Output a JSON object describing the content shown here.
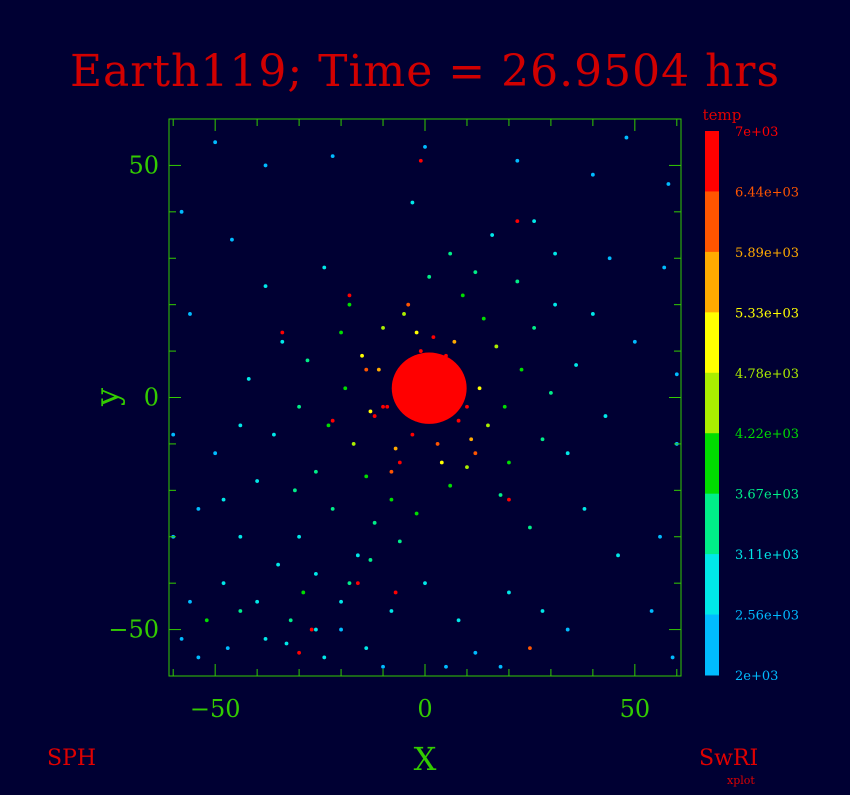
{
  "title": "Earth119; Time = 26.9504 hrs",
  "footer": {
    "left": "SPH",
    "right": "SwRI",
    "right_sub": "xplot"
  },
  "chart_data": {
    "type": "scatter",
    "xlabel": "X",
    "ylabel": "y",
    "xlim": [
      -61,
      61
    ],
    "ylim": [
      -60,
      60
    ],
    "xticks_labeled": [
      -50,
      0,
      50
    ],
    "yticks_labeled": [
      -50,
      0,
      50
    ],
    "x_tick_labels": [
      "−50",
      "0",
      "50"
    ],
    "y_tick_labels": [
      "−50",
      "0",
      "50"
    ],
    "colorbar": {
      "label": "temp",
      "range": [
        2000,
        7000
      ],
      "levels": [
        "7e+03",
        "6.44e+03",
        "5.89e+03",
        "5.33e+03",
        "4.78e+03",
        "4.22e+03",
        "3.67e+03",
        "3.11e+03",
        "2.56e+03",
        "2e+03"
      ],
      "band_colors": [
        "#ff0000",
        "#ff5500",
        "#ffaa00",
        "#ffff00",
        "#aaee00",
        "#00dd00",
        "#00ee88",
        "#00e8e8",
        "#00bbff"
      ]
    },
    "core": {
      "x": 1,
      "y": 2,
      "r": 8.5,
      "temp": 7000
    },
    "particles": [
      {
        "x": -1,
        "y": 10,
        "t": 6900
      },
      {
        "x": 5,
        "y": 9,
        "t": 6800
      },
      {
        "x": -6,
        "y": 6,
        "t": 6600
      },
      {
        "x": 8,
        "y": -5,
        "t": 6500
      },
      {
        "x": -3,
        "y": -8,
        "t": 6700
      },
      {
        "x": 9,
        "y": 4,
        "t": 6400
      },
      {
        "x": -9,
        "y": -2,
        "t": 6600
      },
      {
        "x": 3,
        "y": -10,
        "t": 6200
      },
      {
        "x": -11,
        "y": 6,
        "t": 5700
      },
      {
        "x": 11,
        "y": -9,
        "t": 5600
      },
      {
        "x": -7,
        "y": -11,
        "t": 5500
      },
      {
        "x": 7,
        "y": 12,
        "t": 5800
      },
      {
        "x": -13,
        "y": -3,
        "t": 5200
      },
      {
        "x": 13,
        "y": 2,
        "t": 5300
      },
      {
        "x": -2,
        "y": 14,
        "t": 5100
      },
      {
        "x": 4,
        "y": -14,
        "t": 5000
      },
      {
        "x": -15,
        "y": 9,
        "t": 4800
      },
      {
        "x": 15,
        "y": -6,
        "t": 4700
      },
      {
        "x": -10,
        "y": 15,
        "t": 4600
      },
      {
        "x": 10,
        "y": -15,
        "t": 4500
      },
      {
        "x": -17,
        "y": -10,
        "t": 4400
      },
      {
        "x": 17,
        "y": 11,
        "t": 4300
      },
      {
        "x": -5,
        "y": 18,
        "t": 4400
      },
      {
        "x": 6,
        "y": -19,
        "t": 4200
      },
      {
        "x": -19,
        "y": 2,
        "t": 4200
      },
      {
        "x": 19,
        "y": -2,
        "t": 4100
      },
      {
        "x": -14,
        "y": -17,
        "t": 4000
      },
      {
        "x": 14,
        "y": 17,
        "t": 3900
      },
      {
        "x": -20,
        "y": 14,
        "t": 3900
      },
      {
        "x": 20,
        "y": -14,
        "t": 3800
      },
      {
        "x": -8,
        "y": -22,
        "t": 3900
      },
      {
        "x": 9,
        "y": 22,
        "t": 3800
      },
      {
        "x": -23,
        "y": -6,
        "t": 3700
      },
      {
        "x": 23,
        "y": 6,
        "t": 3800
      },
      {
        "x": -18,
        "y": 20,
        "t": 3700
      },
      {
        "x": 18,
        "y": -21,
        "t": 3600
      },
      {
        "x": -2,
        "y": -25,
        "t": 3700
      },
      {
        "x": 1,
        "y": 26,
        "t": 3600
      },
      {
        "x": -26,
        "y": -16,
        "t": 3500
      },
      {
        "x": 26,
        "y": 15,
        "t": 3500
      },
      {
        "x": -12,
        "y": -27,
        "t": 3500
      },
      {
        "x": 12,
        "y": 27,
        "t": 3400
      },
      {
        "x": -28,
        "y": 8,
        "t": 3400
      },
      {
        "x": 28,
        "y": -9,
        "t": 3400
      },
      {
        "x": -22,
        "y": -24,
        "t": 3400
      },
      {
        "x": 22,
        "y": 25,
        "t": 3300
      },
      {
        "x": -30,
        "y": -2,
        "t": 3300
      },
      {
        "x": 30,
        "y": 1,
        "t": 3300
      },
      {
        "x": -6,
        "y": -31,
        "t": 3400
      },
      {
        "x": 6,
        "y": 31,
        "t": 3200
      },
      {
        "x": -31,
        "y": -20,
        "t": 3200
      },
      {
        "x": 31,
        "y": 20,
        "t": 3100
      },
      {
        "x": -24,
        "y": 28,
        "t": 3100
      },
      {
        "x": 25,
        "y": -28,
        "t": 3200
      },
      {
        "x": -34,
        "y": 12,
        "t": 3000
      },
      {
        "x": 34,
        "y": -12,
        "t": 3000
      },
      {
        "x": -16,
        "y": -34,
        "t": 3100
      },
      {
        "x": 16,
        "y": 35,
        "t": 2900
      },
      {
        "x": -36,
        "y": -8,
        "t": 2900
      },
      {
        "x": 36,
        "y": 7,
        "t": 2900
      },
      {
        "x": -30,
        "y": -30,
        "t": 3000
      },
      {
        "x": 31,
        "y": 31,
        "t": 2800
      },
      {
        "x": -38,
        "y": 24,
        "t": 2800
      },
      {
        "x": 38,
        "y": -24,
        "t": 2800
      },
      {
        "x": -26,
        "y": -38,
        "t": 2900
      },
      {
        "x": 26,
        "y": 38,
        "t": 2700
      },
      {
        "x": -40,
        "y": -18,
        "t": 2800
      },
      {
        "x": 40,
        "y": 18,
        "t": 2700
      },
      {
        "x": -35,
        "y": -36,
        "t": 2800
      },
      {
        "x": 0,
        "y": -40,
        "t": 3000
      },
      {
        "x": -3,
        "y": 42,
        "t": 2700
      },
      {
        "x": -42,
        "y": 4,
        "t": 2700
      },
      {
        "x": 43,
        "y": -4,
        "t": 2600
      },
      {
        "x": -44,
        "y": -30,
        "t": 2700
      },
      {
        "x": -40,
        "y": -44,
        "t": 2700
      },
      {
        "x": -20,
        "y": -44,
        "t": 2800
      },
      {
        "x": 20,
        "y": -42,
        "t": 2900
      },
      {
        "x": 44,
        "y": 30,
        "t": 2500
      },
      {
        "x": -46,
        "y": 34,
        "t": 2500
      },
      {
        "x": 46,
        "y": -34,
        "t": 2600
      },
      {
        "x": -48,
        "y": -40,
        "t": 2600
      },
      {
        "x": -52,
        "y": -48,
        "t": 3700
      },
      {
        "x": -29,
        "y": -42,
        "t": 3700
      },
      {
        "x": -13,
        "y": -35,
        "t": 3600
      },
      {
        "x": -50,
        "y": -12,
        "t": 2500
      },
      {
        "x": 50,
        "y": 12,
        "t": 2400
      },
      {
        "x": -54,
        "y": -24,
        "t": 2500
      },
      {
        "x": 54,
        "y": -46,
        "t": 2500
      },
      {
        "x": -56,
        "y": -44,
        "t": 2500
      },
      {
        "x": -58,
        "y": -52,
        "t": 2400
      },
      {
        "x": -47,
        "y": -54,
        "t": 2500
      },
      {
        "x": -33,
        "y": -53,
        "t": 2600
      },
      {
        "x": -14,
        "y": -54,
        "t": 2600
      },
      {
        "x": 12,
        "y": -55,
        "t": 2500
      },
      {
        "x": 34,
        "y": -50,
        "t": 2500
      },
      {
        "x": 56,
        "y": -30,
        "t": 2400
      },
      {
        "x": 57,
        "y": 28,
        "t": 2300
      },
      {
        "x": -56,
        "y": 18,
        "t": 2300
      },
      {
        "x": -38,
        "y": 50,
        "t": 2300
      },
      {
        "x": -22,
        "y": 52,
        "t": 2200
      },
      {
        "x": 0,
        "y": 54,
        "t": 2300
      },
      {
        "x": 22,
        "y": 51,
        "t": 2300
      },
      {
        "x": 40,
        "y": 48,
        "t": 2200
      },
      {
        "x": -58,
        "y": 40,
        "t": 2200
      },
      {
        "x": 58,
        "y": 46,
        "t": 2200
      },
      {
        "x": -50,
        "y": 55,
        "t": 2100
      },
      {
        "x": 48,
        "y": 56,
        "t": 2100
      },
      {
        "x": 59,
        "y": -56,
        "t": 2300
      },
      {
        "x": -44,
        "y": -6,
        "t": 2600
      },
      {
        "x": -48,
        "y": -22,
        "t": 2600
      },
      {
        "x": -38,
        "y": -52,
        "t": 2700
      },
      {
        "x": -26,
        "y": -50,
        "t": 2700
      },
      {
        "x": -8,
        "y": -46,
        "t": 2800
      },
      {
        "x": 8,
        "y": -48,
        "t": 2700
      },
      {
        "x": 28,
        "y": -46,
        "t": 2600
      },
      {
        "x": -32,
        "y": -48,
        "t": 3500
      },
      {
        "x": -18,
        "y": -40,
        "t": 3600
      },
      {
        "x": -44,
        "y": -46,
        "t": 3500
      },
      {
        "x": -24,
        "y": -56,
        "t": 2600
      },
      {
        "x": -54,
        "y": -56,
        "t": 2500
      },
      {
        "x": -12,
        "y": -4,
        "t": 6800
      },
      {
        "x": -14,
        "y": 6,
        "t": 6300
      },
      {
        "x": 12,
        "y": -12,
        "t": 6200
      },
      {
        "x": -8,
        "y": -16,
        "t": 5900
      },
      {
        "x": -4,
        "y": 20,
        "t": 6400
      },
      {
        "x": -18,
        "y": 22,
        "t": 6500
      },
      {
        "x": -27,
        "y": -50,
        "t": 6600
      },
      {
        "x": -30,
        "y": -55,
        "t": 6500
      },
      {
        "x": -16,
        "y": -40,
        "t": 6700
      },
      {
        "x": -7,
        "y": -42,
        "t": 6600
      },
      {
        "x": 20,
        "y": -22,
        "t": 6500
      },
      {
        "x": -22,
        "y": -5,
        "t": 6600
      },
      {
        "x": -34,
        "y": 14,
        "t": 6700
      },
      {
        "x": 22,
        "y": 38,
        "t": 6800
      },
      {
        "x": -1,
        "y": 51,
        "t": 6700
      },
      {
        "x": 25,
        "y": -54,
        "t": 6100
      },
      {
        "x": -10,
        "y": -2,
        "t": 6900
      },
      {
        "x": 10,
        "y": -2,
        "t": 6900
      },
      {
        "x": 2,
        "y": 13,
        "t": 6800
      },
      {
        "x": -6,
        "y": -14,
        "t": 6700
      },
      {
        "x": -20,
        "y": -50,
        "t": 2300
      },
      {
        "x": -10,
        "y": -58,
        "t": 2400
      },
      {
        "x": 5,
        "y": -58,
        "t": 2300
      },
      {
        "x": 18,
        "y": -58,
        "t": 2300
      },
      {
        "x": -60,
        "y": -8,
        "t": 2200
      },
      {
        "x": -60,
        "y": -30,
        "t": 2300
      },
      {
        "x": 60,
        "y": -10,
        "t": 2200
      },
      {
        "x": 60,
        "y": 5,
        "t": 2300
      }
    ]
  }
}
